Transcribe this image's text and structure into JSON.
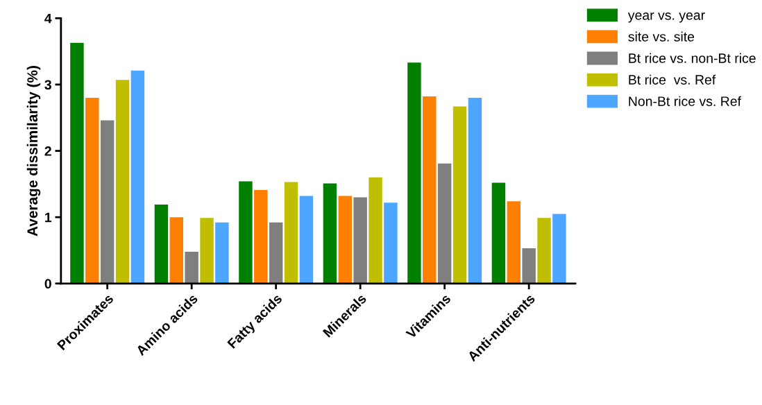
{
  "chart_data": {
    "type": "bar",
    "ylabel": "Average dissimilarity (%)",
    "categories": [
      "Proximates",
      "Amino acids",
      "Fatty acids",
      "Minerals",
      "Vitamins",
      "Anti-nutrients"
    ],
    "series": [
      {
        "name": "year vs. year",
        "color": "#007f00",
        "values": [
          3.63,
          1.19,
          1.54,
          1.51,
          3.33,
          1.52
        ]
      },
      {
        "name": "site vs. site",
        "color": "#ff7f00",
        "values": [
          2.8,
          1.0,
          1.41,
          1.32,
          2.82,
          1.24
        ]
      },
      {
        "name": "Bt rice vs. non-Bt rice",
        "color": "#7f7f7f",
        "values": [
          2.46,
          0.48,
          0.92,
          1.3,
          1.81,
          0.53
        ]
      },
      {
        "name": "Bt rice  vs. Ref",
        "color": "#bfbf00",
        "values": [
          3.07,
          0.99,
          1.53,
          1.6,
          2.67,
          0.99
        ]
      },
      {
        "name": "Non-Bt rice vs. Ref",
        "color": "#4ca6ff",
        "values": [
          3.21,
          0.92,
          1.32,
          1.22,
          2.8,
          1.05
        ]
      }
    ],
    "ylim": [
      0,
      4
    ],
    "yticks": [
      0,
      1,
      2,
      3,
      4
    ],
    "grid": false,
    "legend": "top right"
  }
}
